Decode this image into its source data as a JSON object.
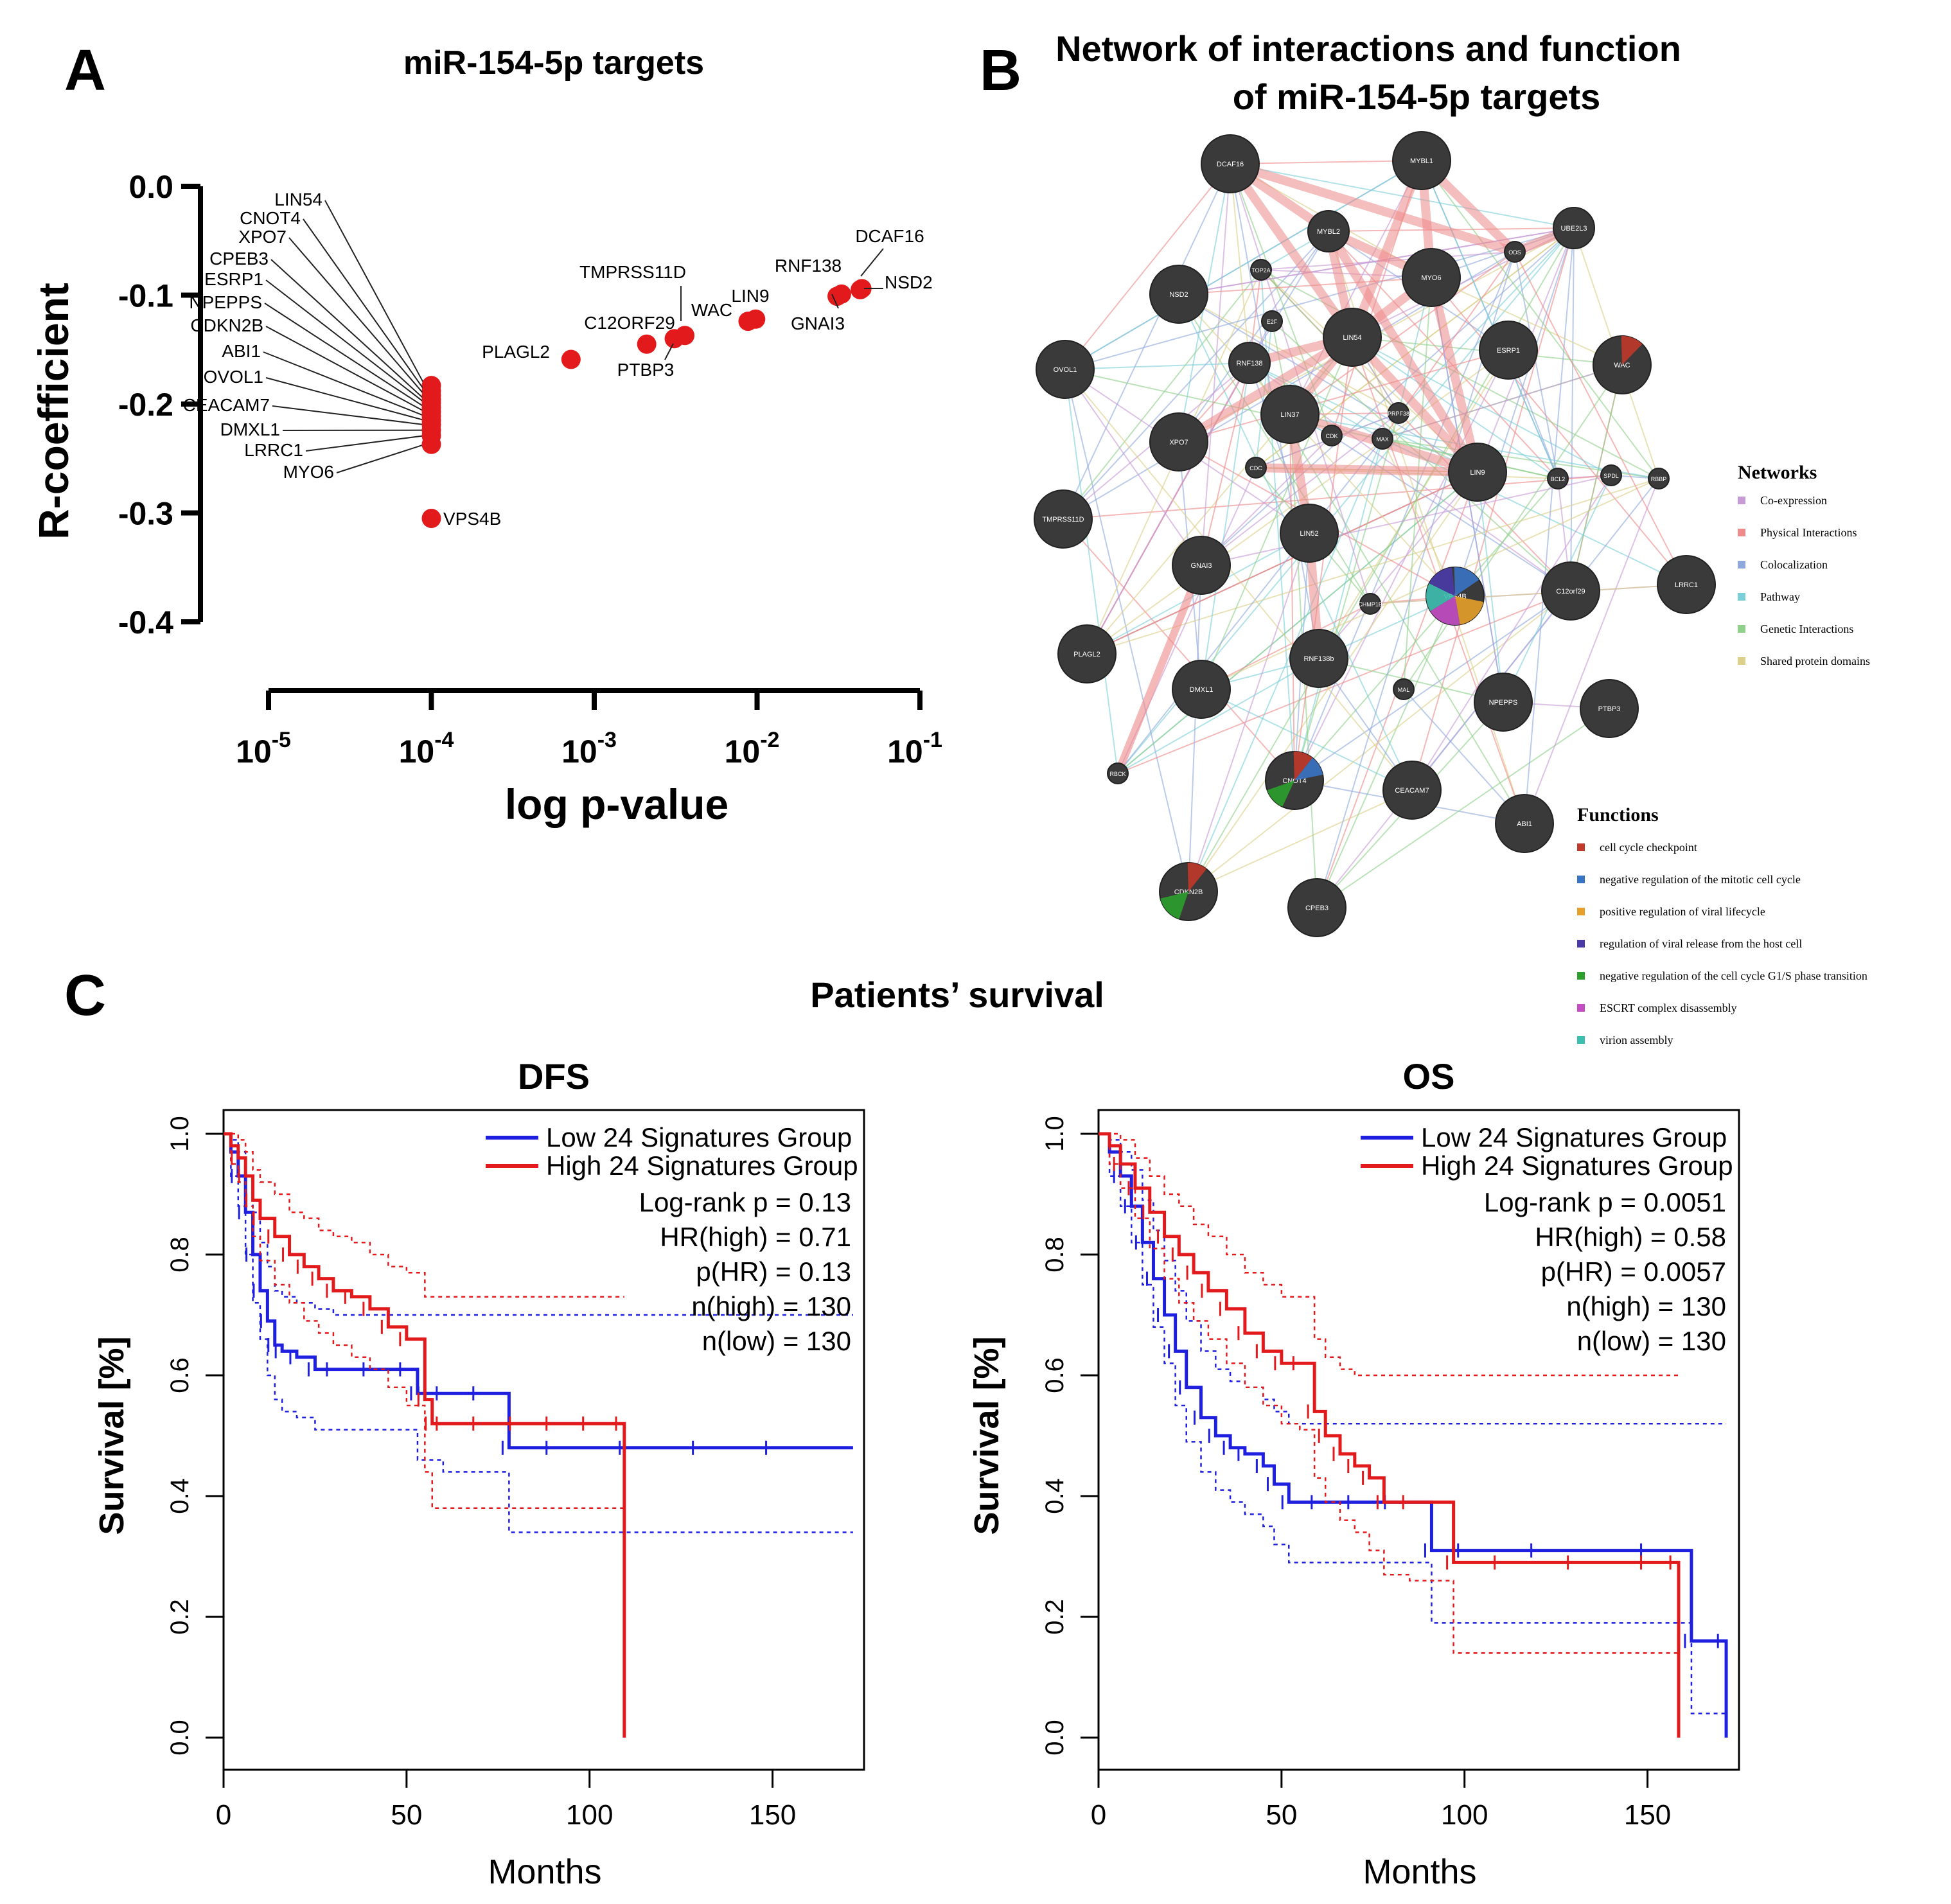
{
  "panel_labels": {
    "a": "A",
    "b": "B",
    "c": "C"
  },
  "colors": {
    "red": "#e31a1c",
    "blue": "#1f1fe0",
    "node": "#3a3a3a"
  },
  "chart_data": [
    {
      "id": "A",
      "type": "scatter",
      "title": "miR-154-5p targets",
      "xlabel": "log p-value",
      "ylabel": "R-coefficient",
      "xscale": "log",
      "xlim": [
        1e-05,
        0.1
      ],
      "ylim": [
        -0.4,
        0.0
      ],
      "yticks": [
        "0.0",
        "-0.1",
        "-0.2",
        "-0.3",
        "-0.4"
      ],
      "xticks": [
        {
          "base": "10",
          "exp": "-5"
        },
        {
          "base": "10",
          "exp": "-4"
        },
        {
          "base": "10",
          "exp": "-3"
        },
        {
          "base": "10",
          "exp": "-2"
        },
        {
          "base": "10",
          "exp": "-1"
        }
      ],
      "points": [
        {
          "label": "LIN54",
          "p": 0.0001,
          "r": -0.183
        },
        {
          "label": "CNOT4",
          "p": 0.0001,
          "r": -0.188
        },
        {
          "label": "XPO7",
          "p": 0.0001,
          "r": -0.192
        },
        {
          "label": "CPEB3",
          "p": 0.0001,
          "r": -0.196
        },
        {
          "label": "ESRP1",
          "p": 0.0001,
          "r": -0.199
        },
        {
          "label": "NPEPPS",
          "p": 0.0001,
          "r": -0.203
        },
        {
          "label": "CDKN2B",
          "p": 0.0001,
          "r": -0.207
        },
        {
          "label": "ABI1",
          "p": 0.0001,
          "r": -0.211
        },
        {
          "label": "OVOL1",
          "p": 0.0001,
          "r": -0.215
        },
        {
          "label": "CEACAM7",
          "p": 0.0001,
          "r": -0.219
        },
        {
          "label": "DMXL1",
          "p": 0.0001,
          "r": -0.224
        },
        {
          "label": "LRRC1",
          "p": 0.0001,
          "r": -0.229
        },
        {
          "label": "MYO6",
          "p": 0.0001,
          "r": -0.237
        },
        {
          "label": "VPS4B",
          "p": 0.0001,
          "r": -0.305
        },
        {
          "label": "PLAGL2",
          "p": 0.00072,
          "r": -0.159
        },
        {
          "label": "C12ORF29",
          "p": 0.0021,
          "r": -0.145
        },
        {
          "label": "PTBP3",
          "p": 0.0031,
          "r": -0.14
        },
        {
          "label": "TMPRSS11D",
          "p": 0.0036,
          "r": -0.137
        },
        {
          "label": "WAC",
          "p": 0.0088,
          "r": -0.124
        },
        {
          "label": "LIN9",
          "p": 0.0098,
          "r": -0.122
        },
        {
          "label": "GNAI3",
          "p": 0.031,
          "r": -0.101
        },
        {
          "label": "RNF138",
          "p": 0.033,
          "r": -0.099
        },
        {
          "label": "DCAF16",
          "p": 0.043,
          "r": -0.095
        },
        {
          "label": "NSD2",
          "p": 0.044,
          "r": -0.094
        }
      ]
    },
    {
      "id": "C-DFS",
      "type": "line",
      "subtype": "kaplan-meier",
      "title": "DFS",
      "xlabel": "Months",
      "ylabel": "Survival [%]",
      "xlim": [
        0,
        175
      ],
      "ylim": [
        0,
        1.0
      ],
      "xticks": [
        "0",
        "50",
        "100",
        "150"
      ],
      "yticks": [
        "0.0",
        "0.2",
        "0.4",
        "0.6",
        "0.8",
        "1.0"
      ],
      "legend": [
        "Low 24 Signatures Group",
        "High 24 Signatures Group"
      ],
      "stats": [
        "Log-rank p = 0.13",
        "HR(high) = 0.71",
        "p(HR) = 0.13",
        "n(high) = 130",
        "n(low) = 130"
      ],
      "series": [
        {
          "name": "Low 24 Signatures Group",
          "color": "#1f1fe0",
          "x": [
            0,
            2,
            4,
            6,
            8,
            10,
            12,
            14,
            16,
            20,
            25,
            30,
            40,
            50,
            53,
            55,
            60,
            70,
            78,
            90,
            110,
            130,
            150,
            172
          ],
          "y": [
            1.0,
            0.97,
            0.93,
            0.87,
            0.8,
            0.74,
            0.69,
            0.65,
            0.64,
            0.63,
            0.61,
            0.61,
            0.61,
            0.61,
            0.57,
            0.57,
            0.57,
            0.57,
            0.48,
            0.48,
            0.48,
            0.48,
            0.48,
            0.48
          ],
          "lower": [
            1.0,
            0.93,
            0.88,
            0.8,
            0.72,
            0.66,
            0.6,
            0.56,
            0.54,
            0.53,
            0.51,
            0.51,
            0.51,
            0.51,
            0.46,
            0.46,
            0.44,
            0.44,
            0.34,
            0.34,
            0.34,
            0.34,
            0.34,
            0.34
          ],
          "upper": [
            1.0,
            0.99,
            0.97,
            0.93,
            0.87,
            0.82,
            0.78,
            0.74,
            0.73,
            0.72,
            0.71,
            0.7,
            0.7,
            0.7,
            0.7,
            0.7,
            0.7,
            0.7,
            0.7,
            0.7,
            0.7,
            0.7,
            0.7,
            0.7
          ]
        },
        {
          "name": "High 24 Signatures Group",
          "color": "#e31a1c",
          "x": [
            0,
            2,
            4,
            6,
            8,
            10,
            14,
            18,
            22,
            26,
            30,
            35,
            40,
            45,
            50,
            55,
            57,
            60,
            70,
            80,
            90,
            100,
            109,
            109.5
          ],
          "y": [
            1.0,
            0.98,
            0.96,
            0.93,
            0.89,
            0.86,
            0.83,
            0.8,
            0.78,
            0.76,
            0.74,
            0.73,
            0.71,
            0.68,
            0.66,
            0.56,
            0.52,
            0.52,
            0.52,
            0.52,
            0.52,
            0.52,
            0.52,
            0.0
          ],
          "lower": [
            1.0,
            0.95,
            0.92,
            0.88,
            0.83,
            0.79,
            0.75,
            0.72,
            0.69,
            0.67,
            0.65,
            0.63,
            0.61,
            0.58,
            0.55,
            0.44,
            0.38,
            0.38,
            0.38,
            0.38,
            0.38,
            0.38,
            0.38,
            0.38
          ],
          "upper": [
            1.0,
            1.0,
            0.99,
            0.97,
            0.94,
            0.92,
            0.9,
            0.87,
            0.86,
            0.84,
            0.83,
            0.82,
            0.8,
            0.78,
            0.77,
            0.73,
            0.73,
            0.73,
            0.73,
            0.73,
            0.73,
            0.73,
            0.73,
            0.73
          ]
        }
      ]
    },
    {
      "id": "C-OS",
      "type": "line",
      "subtype": "kaplan-meier",
      "title": "OS",
      "xlabel": "Months",
      "ylabel": "Survival [%]",
      "xlim": [
        0,
        175
      ],
      "ylim": [
        0,
        1.0
      ],
      "xticks": [
        "0",
        "50",
        "100",
        "150"
      ],
      "yticks": [
        "0.0",
        "0.2",
        "0.4",
        "0.6",
        "0.8",
        "1.0"
      ],
      "legend": [
        "Low 24 Signatures Group",
        "High 24 Signatures Group"
      ],
      "stats": [
        "Log-rank p = 0.0051",
        "HR(high) = 0.58",
        "p(HR) = 0.0057",
        "n(high) = 130",
        "n(low) = 130"
      ],
      "series": [
        {
          "name": "Low 24 Signatures Group",
          "color": "#1f1fe0",
          "x": [
            0,
            3,
            6,
            9,
            12,
            15,
            18,
            21,
            24,
            28,
            32,
            36,
            40,
            45,
            48,
            52,
            60,
            70,
            80,
            91,
            100,
            120,
            150,
            162,
            171,
            171.5
          ],
          "y": [
            1.0,
            0.97,
            0.93,
            0.88,
            0.82,
            0.76,
            0.7,
            0.64,
            0.58,
            0.53,
            0.5,
            0.48,
            0.47,
            0.45,
            0.42,
            0.39,
            0.39,
            0.39,
            0.39,
            0.31,
            0.31,
            0.31,
            0.31,
            0.16,
            0.16,
            0.0
          ],
          "lower": [
            1.0,
            0.93,
            0.88,
            0.82,
            0.75,
            0.68,
            0.62,
            0.55,
            0.49,
            0.44,
            0.41,
            0.39,
            0.37,
            0.35,
            0.32,
            0.29,
            0.29,
            0.29,
            0.29,
            0.19,
            0.19,
            0.19,
            0.19,
            0.04,
            0.04,
            0.04
          ],
          "upper": [
            1.0,
            0.99,
            0.97,
            0.94,
            0.89,
            0.84,
            0.79,
            0.74,
            0.69,
            0.64,
            0.61,
            0.59,
            0.58,
            0.56,
            0.54,
            0.52,
            0.52,
            0.52,
            0.52,
            0.52,
            0.52,
            0.52,
            0.52,
            0.52,
            0.52,
            0.52
          ]
        },
        {
          "name": "High 24 Signatures Group",
          "color": "#e31a1c",
          "x": [
            0,
            3,
            6,
            10,
            14,
            18,
            22,
            26,
            30,
            35,
            40,
            45,
            50,
            55,
            59,
            62,
            66,
            70,
            74,
            78,
            85,
            97,
            110,
            130,
            150,
            158,
            158.5
          ],
          "y": [
            1.0,
            0.98,
            0.95,
            0.91,
            0.87,
            0.83,
            0.8,
            0.77,
            0.74,
            0.71,
            0.67,
            0.64,
            0.62,
            0.62,
            0.54,
            0.5,
            0.47,
            0.45,
            0.43,
            0.39,
            0.39,
            0.29,
            0.29,
            0.29,
            0.29,
            0.29,
            0.0
          ],
          "lower": [
            1.0,
            0.95,
            0.91,
            0.86,
            0.81,
            0.76,
            0.72,
            0.69,
            0.66,
            0.62,
            0.58,
            0.55,
            0.52,
            0.51,
            0.43,
            0.39,
            0.36,
            0.34,
            0.31,
            0.27,
            0.26,
            0.14,
            0.14,
            0.14,
            0.14,
            0.14,
            0.14
          ],
          "upper": [
            1.0,
            1.0,
            0.99,
            0.96,
            0.93,
            0.9,
            0.88,
            0.85,
            0.83,
            0.8,
            0.77,
            0.75,
            0.73,
            0.73,
            0.66,
            0.63,
            0.61,
            0.6,
            0.6,
            0.6,
            0.6,
            0.6,
            0.6,
            0.6,
            0.6,
            0.6,
            0.6
          ]
        }
      ]
    }
  ],
  "network": {
    "title_line1": "Network of interactions and function",
    "title_line2": "of miR-154-5p targets",
    "nodes": [
      {
        "label": "DCAF16",
        "size": "big"
      },
      {
        "label": "MYBL1",
        "size": "big"
      },
      {
        "label": "MYBL2",
        "size": "mid"
      },
      {
        "label": "UBE2L3",
        "size": "mid"
      },
      {
        "label": "ODS",
        "size": "small"
      },
      {
        "label": "TOP2A",
        "size": "small"
      },
      {
        "label": "NSD2",
        "size": "big"
      },
      {
        "label": "MYO6",
        "size": "big"
      },
      {
        "label": "E2F",
        "size": "small"
      },
      {
        "label": "LIN54",
        "size": "big"
      },
      {
        "label": "RNF138",
        "size": "mid"
      },
      {
        "label": "ESRP1",
        "size": "big"
      },
      {
        "label": "WAC",
        "size": "big"
      },
      {
        "label": "OVOL1",
        "size": "big"
      },
      {
        "label": "LIN37",
        "size": "big"
      },
      {
        "label": "XPO7",
        "size": "big"
      },
      {
        "label": "PRPF38",
        "size": "small"
      },
      {
        "label": "MAX",
        "size": "small"
      },
      {
        "label": "CDC",
        "size": "small"
      },
      {
        "label": "LIN9",
        "size": "big"
      },
      {
        "label": "TMPRSS11D",
        "size": "big"
      },
      {
        "label": "BCL2",
        "size": "small"
      },
      {
        "label": "LIN52",
        "size": "big"
      },
      {
        "label": "CDK",
        "size": "small"
      },
      {
        "label": "SPDL",
        "size": "small"
      },
      {
        "label": "RBBP",
        "size": "small"
      },
      {
        "label": "GNAI3",
        "size": "big"
      },
      {
        "label": "VPS4B",
        "size": "big"
      },
      {
        "label": "C12orf29",
        "size": "big"
      },
      {
        "label": "LRRC1",
        "size": "big"
      },
      {
        "label": "CHMP1B",
        "size": "small"
      },
      {
        "label": "PLAGL2",
        "size": "big"
      },
      {
        "label": "RNF138b",
        "size": "big"
      },
      {
        "label": "DMXL1",
        "size": "big"
      },
      {
        "label": "MAL",
        "size": "small"
      },
      {
        "label": "NPEPPS",
        "size": "big"
      },
      {
        "label": "PTBP3",
        "size": "big"
      },
      {
        "label": "RBCK",
        "size": "small"
      },
      {
        "label": "CNOT4",
        "size": "big"
      },
      {
        "label": "CEACAM7",
        "size": "big"
      },
      {
        "label": "ABI1",
        "size": "big"
      },
      {
        "label": "CDKN2B",
        "size": "big"
      },
      {
        "label": "CPEB3",
        "size": "big"
      }
    ],
    "networks_title": "Networks",
    "networks_legend": [
      {
        "label": "Co-expression",
        "color": "#c79bd6"
      },
      {
        "label": "Physical Interactions",
        "color": "#ee8a8a"
      },
      {
        "label": "Colocalization",
        "color": "#8fa9dc"
      },
      {
        "label": "Pathway",
        "color": "#7ccfd8"
      },
      {
        "label": "Genetic Interactions",
        "color": "#8fd08a"
      },
      {
        "label": "Shared protein domains",
        "color": "#dcd08a"
      }
    ],
    "functions_title": "Functions",
    "functions_legend": [
      {
        "label": "cell cycle checkpoint",
        "color": "#c0392b"
      },
      {
        "label": "negative regulation of the mitotic cell cycle",
        "color": "#3a74c4"
      },
      {
        "label": "positive regulation of viral lifecycle",
        "color": "#e6a12a"
      },
      {
        "label": "regulation of viral release from the host cell",
        "color": "#4a3aa8"
      },
      {
        "label": "negative regulation of the cell cycle G1/S phase transition",
        "color": "#2ca02c"
      },
      {
        "label": "ESCRT complex disassembly",
        "color": "#c44cc4"
      },
      {
        "label": "virion assembly",
        "color": "#3dbfb0"
      }
    ]
  },
  "panel_c_title": "Patients’ survival"
}
